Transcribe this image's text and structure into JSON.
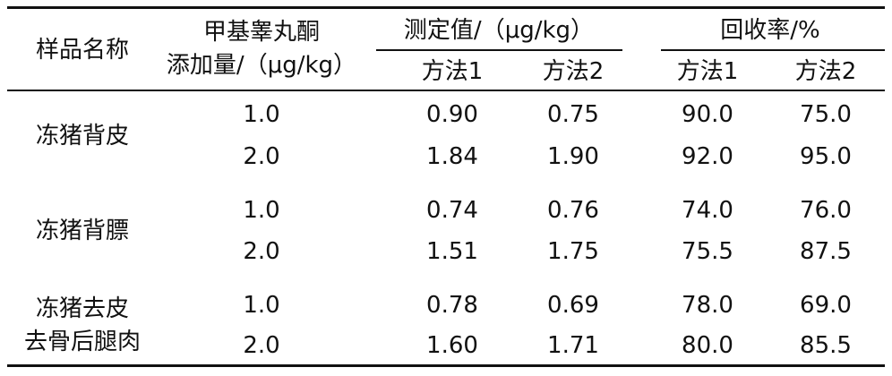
{
  "header": {
    "sample": "样品名称",
    "added": [
      "甲基睾丸酮",
      "添加量/（μg/kg）"
    ],
    "measured": "测定值/（μg/kg）",
    "recovery": "回收率/%",
    "sub": [
      "方法1",
      "方法2",
      "方法1",
      "方法2"
    ]
  },
  "groups": [
    {
      "name": [
        "冻猪背皮"
      ],
      "rows": [
        [
          "1.0",
          "0.90",
          "0.75",
          "90.0",
          "75.0"
        ],
        [
          "2.0",
          "1.84",
          "1.90",
          "92.0",
          "95.0"
        ]
      ]
    },
    {
      "name": [
        "冻猪背膘"
      ],
      "rows": [
        [
          "1.0",
          "0.74",
          "0.76",
          "74.0",
          "76.0"
        ],
        [
          "2.0",
          "1.51",
          "1.75",
          "75.5",
          "87.5"
        ]
      ]
    },
    {
      "name": [
        "冻猪去皮",
        "去骨后腿肉"
      ],
      "rows": [
        [
          "1.0",
          "0.78",
          "0.69",
          "78.0",
          "69.0"
        ],
        [
          "2.0",
          "1.60",
          "1.71",
          "80.0",
          "85.5"
        ]
      ]
    }
  ]
}
